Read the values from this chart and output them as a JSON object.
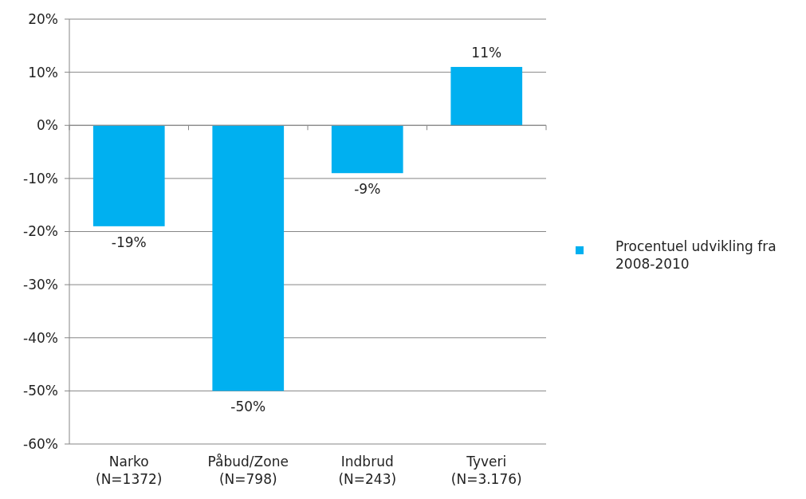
{
  "chart_data": {
    "type": "bar",
    "categories": [
      "Narko\n(N=1372)",
      "Påbud/Zone\n(N=798)",
      "Indbrud\n(N=243)",
      "Tyveri\n(N=3.176)"
    ],
    "series": [
      {
        "name": "Procentuel udvikling fra 2008-2010",
        "color": "#00b0f0",
        "values": [
          -19,
          -50,
          -9,
          11
        ],
        "value_labels": [
          "-19%",
          "-50%",
          "-9%",
          "11%"
        ]
      }
    ],
    "ylim": [
      -60,
      20
    ],
    "yticks": [
      {
        "value": -60,
        "label": "-60%"
      },
      {
        "value": -50,
        "label": "-50%"
      },
      {
        "value": -40,
        "label": "-40%"
      },
      {
        "value": -30,
        "label": "-30%"
      },
      {
        "value": -20,
        "label": "-20%"
      },
      {
        "value": -10,
        "label": "-10%"
      },
      {
        "value": 0,
        "label": "0%"
      },
      {
        "value": 10,
        "label": "10%"
      },
      {
        "value": 20,
        "label": "20%"
      }
    ],
    "grid": "y",
    "legend": "right"
  }
}
